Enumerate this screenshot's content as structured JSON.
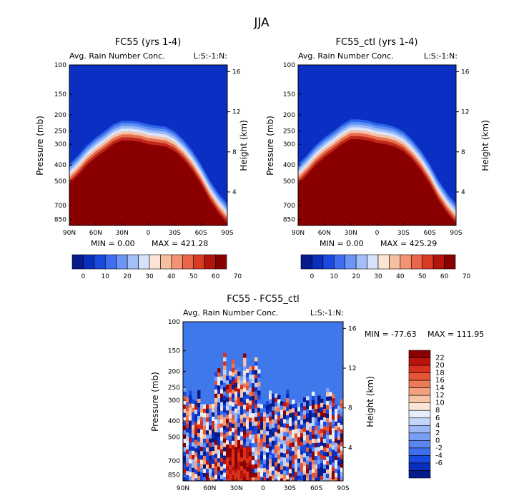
{
  "colors": {
    "top_blue": "#0b2fc2",
    "dark_red": "#8a0000",
    "diff_background": "#3f78ea",
    "top_colorbar": [
      "#061a8c",
      "#0a2fbd",
      "#1a49e0",
      "#3f6ff0",
      "#6d95f6",
      "#a3bff9",
      "#d4e3fb",
      "#fbe4d6",
      "#f6bfa0",
      "#f29373",
      "#ea6549",
      "#d93b23",
      "#b3150d",
      "#8a0000"
    ],
    "diff_colorbar": [
      "#061a8c",
      "#0a2fbd",
      "#1a49e0",
      "#3f6ff0",
      "#5b86f2",
      "#7a9ef5",
      "#9cb8f8",
      "#c2d5fa",
      "#e6eefb",
      "#fbe4d6",
      "#f6c4a6",
      "#f2a07e",
      "#ec7a57",
      "#e45536",
      "#d9321c",
      "#b8140c",
      "#8a0000"
    ]
  },
  "chart_data": [
    {
      "type": "heatmap",
      "title": "FC55 (yrs 1-4)",
      "subtitle": "Avg. Rain Number Conc.",
      "tag": "L:S:-1:N:",
      "xlabel": "",
      "ylabel": "Pressure (mb)",
      "y2label": "Height (km)",
      "x_ticks": [
        "90N",
        "60N",
        "30N",
        "0",
        "30S",
        "60S",
        "90S"
      ],
      "x_values": [
        90,
        60,
        30,
        0,
        -30,
        -60,
        -90
      ],
      "y_ticks": [
        "100",
        "150",
        "200",
        "250",
        "300",
        "400",
        "500",
        "700",
        "850"
      ],
      "y_values": [
        100,
        150,
        200,
        250,
        300,
        400,
        500,
        700,
        850
      ],
      "ylim": [
        100,
        925
      ],
      "y2_ticks": [
        "16",
        "12",
        "8",
        "4"
      ],
      "y2_values": [
        16,
        12,
        8,
        4
      ],
      "min_text": "MIN =    0.00",
      "max_text": "MAX = 421.28",
      "boundary_profile": {
        "lat": [
          90,
          80,
          70,
          60,
          50,
          40,
          30,
          20,
          10,
          0,
          -10,
          -20,
          -30,
          -40,
          -50,
          -60,
          -70,
          -80,
          -90
        ],
        "pressure_mb": [
          520,
          460,
          400,
          360,
          330,
          300,
          285,
          285,
          290,
          300,
          305,
          310,
          330,
          370,
          430,
          520,
          650,
          780,
          900
        ]
      },
      "colorbar_labels": [
        "0",
        "10",
        "20",
        "30",
        "40",
        "50",
        "60",
        "70"
      ]
    },
    {
      "type": "heatmap",
      "title": "FC55_ctl (yrs 1-4)",
      "subtitle": "Avg. Rain Number Conc.",
      "tag": "L:S:-1:N:",
      "xlabel": "",
      "ylabel": "Pressure (mb)",
      "y2label": "Height (km)",
      "x_ticks": [
        "90N",
        "60N",
        "30N",
        "0",
        "30S",
        "60S",
        "90S"
      ],
      "x_values": [
        90,
        60,
        30,
        0,
        -30,
        -60,
        -90
      ],
      "y_ticks": [
        "100",
        "150",
        "200",
        "250",
        "300",
        "400",
        "500",
        "700",
        "850"
      ],
      "y_values": [
        100,
        150,
        200,
        250,
        300,
        400,
        500,
        700,
        850
      ],
      "ylim": [
        100,
        925
      ],
      "y2_ticks": [
        "16",
        "12",
        "8",
        "4"
      ],
      "y2_values": [
        16,
        12,
        8,
        4
      ],
      "min_text": "MIN =    0.00",
      "max_text": "MAX = 425.29",
      "boundary_profile": {
        "lat": [
          90,
          80,
          70,
          60,
          50,
          40,
          30,
          20,
          10,
          0,
          -10,
          -20,
          -30,
          -40,
          -50,
          -60,
          -70,
          -80,
          -90
        ],
        "pressure_mb": [
          520,
          460,
          400,
          360,
          330,
          300,
          280,
          280,
          285,
          295,
          300,
          310,
          330,
          370,
          430,
          520,
          650,
          780,
          900
        ]
      },
      "colorbar_labels": [
        "0",
        "10",
        "20",
        "30",
        "40",
        "50",
        "60",
        "70"
      ]
    },
    {
      "type": "heatmap",
      "title": "FC55 - FC55_ctl",
      "subtitle": "Avg. Rain Number Conc.",
      "tag": "L:S:-1:N:",
      "xlabel": "",
      "ylabel": "Pressure (mb)",
      "y2label": "Height (km)",
      "x_ticks": [
        "90N",
        "60N",
        "30N",
        "0",
        "30S",
        "60S",
        "90S"
      ],
      "x_values": [
        90,
        60,
        30,
        0,
        -30,
        -60,
        -90
      ],
      "y_ticks": [
        "100",
        "150",
        "200",
        "250",
        "300",
        "400",
        "500",
        "700",
        "850"
      ],
      "y_values": [
        100,
        150,
        200,
        250,
        300,
        400,
        500,
        700,
        850
      ],
      "ylim": [
        100,
        925
      ],
      "y2_ticks": [
        "16",
        "12",
        "8",
        "4"
      ],
      "y2_values": [
        16,
        12,
        8,
        4
      ],
      "min_text": "MIN = -77.63",
      "max_text": "MAX = 111.95",
      "colorbar_labels": [
        "22",
        "20",
        "18",
        "16",
        "14",
        "12",
        "10",
        "8",
        "6",
        "4",
        "2",
        "0",
        "-2",
        "-4",
        "-6"
      ]
    }
  ],
  "page": {
    "title": "JJA"
  }
}
